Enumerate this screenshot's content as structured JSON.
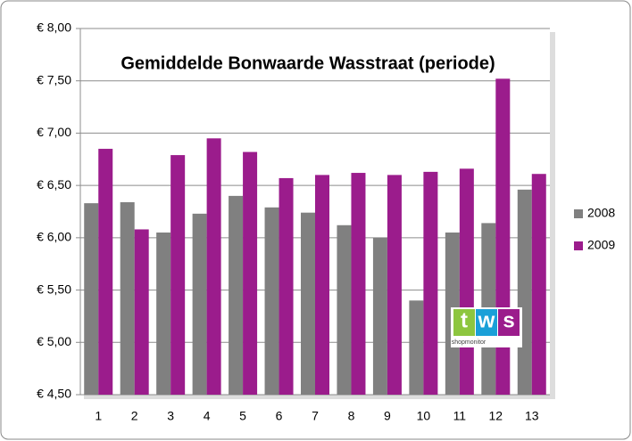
{
  "chart_data": {
    "type": "bar",
    "title": "Gemiddelde Bonwaarde Wasstraat (periode)",
    "categories": [
      "1",
      "2",
      "3",
      "4",
      "5",
      "6",
      "7",
      "8",
      "9",
      "10",
      "11",
      "12",
      "13"
    ],
    "series": [
      {
        "name": "2008",
        "color": "#808080",
        "values": [
          6.33,
          6.34,
          6.05,
          6.23,
          6.4,
          6.29,
          6.24,
          6.12,
          6.0,
          5.4,
          6.05,
          6.14,
          6.46
        ]
      },
      {
        "name": "2009",
        "color": "#9b1c8c",
        "values": [
          6.85,
          6.08,
          6.79,
          6.95,
          6.82,
          6.57,
          6.6,
          6.62,
          6.6,
          6.63,
          6.66,
          7.52,
          6.61
        ]
      }
    ],
    "ylim": [
      4.5,
      8
    ],
    "yticks": [
      {
        "value": 4.5,
        "label": "€ 4,50"
      },
      {
        "value": 5,
        "label": "€ 5,00"
      },
      {
        "value": 5.5,
        "label": "€ 5,50"
      },
      {
        "value": 6,
        "label": "€ 6,00"
      },
      {
        "value": 6.5,
        "label": "€ 6,50"
      },
      {
        "value": 7,
        "label": "€ 7,00"
      },
      {
        "value": 7.5,
        "label": "€ 7,50"
      },
      {
        "value": 8,
        "label": "€ 8,00"
      }
    ],
    "grid": true,
    "legend": "right"
  },
  "logo": {
    "letters": [
      "t",
      "w",
      "s"
    ],
    "subtext": "shopmonitor"
  }
}
